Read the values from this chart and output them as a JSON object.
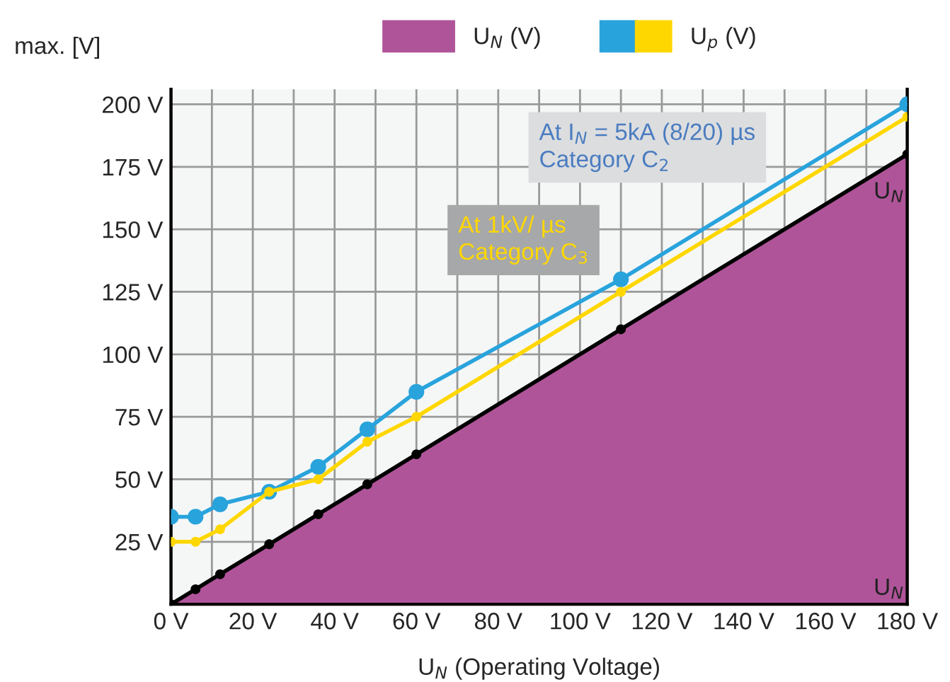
{
  "chart_data": {
    "type": "line",
    "ylabel": "max. [V]",
    "xlabel": "U$_{N}$ (Operating Voltage)",
    "xlim": [
      0,
      180
    ],
    "ylim": [
      0,
      206
    ],
    "xticks": [
      {
        "value": 0,
        "label": "0 V"
      },
      {
        "value": 10,
        "label": null
      },
      {
        "value": 20,
        "label": "20 V"
      },
      {
        "value": 30,
        "label": null
      },
      {
        "value": 40,
        "label": "40 V"
      },
      {
        "value": 50,
        "label": null
      },
      {
        "value": 60,
        "label": "60 V"
      },
      {
        "value": 70,
        "label": null
      },
      {
        "value": 80,
        "label": "80 V"
      },
      {
        "value": 90,
        "label": null
      },
      {
        "value": 100,
        "label": "100 V"
      },
      {
        "value": 110,
        "label": null
      },
      {
        "value": 120,
        "label": "120 V"
      },
      {
        "value": 130,
        "label": null
      },
      {
        "value": 140,
        "label": "140 V"
      },
      {
        "value": 150,
        "label": null
      },
      {
        "value": 160,
        "label": "160 V"
      },
      {
        "value": 170,
        "label": null
      },
      {
        "value": 180,
        "label": "180 V"
      }
    ],
    "yticks": [
      {
        "value": 0,
        "label": null
      },
      {
        "value": 25,
        "label": "25 V"
      },
      {
        "value": 50,
        "label": "50 V"
      },
      {
        "value": 75,
        "label": "75 V"
      },
      {
        "value": 100,
        "label": "100 V"
      },
      {
        "value": 125,
        "label": "125 V"
      },
      {
        "value": 150,
        "label": "150 V"
      },
      {
        "value": 175,
        "label": "175 V"
      },
      {
        "value": 200,
        "label": "200 V"
      }
    ],
    "grid": true,
    "legend": "top",
    "marker": "circle",
    "line_style": "solid",
    "series": [
      {
        "type": "area",
        "name": "U$_{N}$ (V)",
        "color": "#b0549a",
        "x": [
          0,
          6,
          12,
          24,
          36,
          48,
          60,
          110,
          180
        ],
        "values": [
          0,
          6,
          12,
          24,
          36,
          48,
          60,
          110,
          180
        ]
      },
      {
        "name": "U$_{p}$ (V)",
        "color": "#29a3dc",
        "x": [
          0,
          6,
          12,
          24,
          36,
          48,
          60,
          110,
          180
        ],
        "values": [
          35,
          35,
          40,
          45,
          55,
          70,
          85,
          130,
          200
        ]
      },
      {
        "color": "#ffd700",
        "x": [
          0,
          6,
          12,
          24,
          36,
          48,
          60,
          110,
          180
        ],
        "values": [
          25,
          25,
          30,
          45,
          50,
          65,
          75,
          125,
          195
        ]
      }
    ],
    "annotations": [
      "At I$_{N}$ = 5kA (8/20) µs\nCategory C$_{2}$",
      "At 1kV/ µs\nCategory C$_{3}$",
      "U$_{N}$",
      "U$_{N}$"
    ]
  }
}
